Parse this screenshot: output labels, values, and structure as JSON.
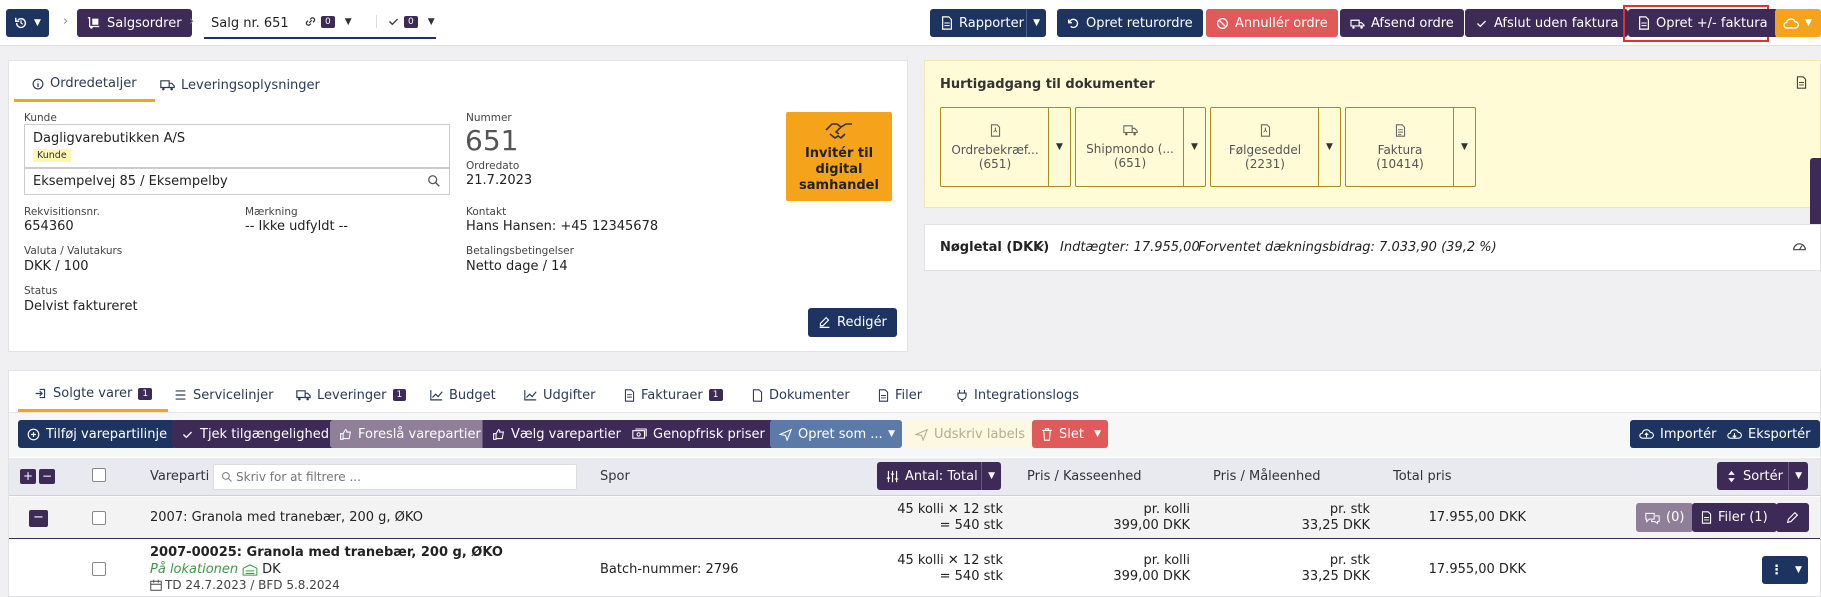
{
  "topbar": {
    "breadcrumb_app": "Salgsordrer",
    "breadcrumb_current": "Salg nr. 651",
    "link_count": "0",
    "check_count": "0",
    "actions": {
      "rapporter": "Rapporter",
      "returordre": "Opret returordre",
      "annuller": "Annullér ordre",
      "afsend": "Afsend ordre",
      "afslut": "Afslut uden faktura",
      "faktura": "Opret +/- faktura"
    }
  },
  "details": {
    "tabs": [
      "Ordredetaljer",
      "Leveringsoplysninger"
    ],
    "kunde_label": "Kunde",
    "kunde_name": "Dagligvarebutikken A/S",
    "kunde_tag": "Kunde",
    "address": "Eksempelvej 85 / Eksempelby",
    "nummer_label": "Nummer",
    "nummer": "651",
    "ordredato_label": "Ordredato",
    "ordredato": "21.7.2023",
    "rekv_label": "Rekvisitionsnr.",
    "rekv": "654360",
    "maerkning_label": "Mærkning",
    "maerkning": "-- Ikke udfyldt --",
    "kontakt_label": "Kontakt",
    "kontakt": "Hans Hansen: +45 12345678",
    "valuta_label": "Valuta / Valutakurs",
    "valuta": "DKK / 100",
    "betaling_label": "Betalingsbetingelser",
    "betaling": "Netto dage / 14",
    "status_label": "Status",
    "status": "Delvist faktureret",
    "invite_line1": "Invitér til",
    "invite_line2": "digital",
    "invite_line3": "samhandel",
    "edit_button": "Redigér"
  },
  "documents": {
    "title": "Hurtigadgang til dokumenter",
    "cards": [
      {
        "name": "Ordrebekræf...",
        "num": "(651)"
      },
      {
        "name": "Shipmondo (...",
        "num": "(651)"
      },
      {
        "name": "Følgeseddel",
        "num": "(2231)"
      },
      {
        "name": "Faktura",
        "num": "(10414)"
      }
    ]
  },
  "kpi": {
    "label": "Nøgletal (DKK)",
    "income": "Indtægter: 17.955,00",
    "margin": "Forventet dækningsbidrag: 7.033,90 (39,2 %)"
  },
  "lines_tabs": [
    {
      "label": "Solgte varer",
      "badge": "1"
    },
    {
      "label": "Servicelinjer",
      "badge": ""
    },
    {
      "label": "Leveringer",
      "badge": "1"
    },
    {
      "label": "Budget",
      "badge": ""
    },
    {
      "label": "Udgifter",
      "badge": ""
    },
    {
      "label": "Fakturaer",
      "badge": "1"
    },
    {
      "label": "Dokumenter",
      "badge": ""
    },
    {
      "label": "Filer",
      "badge": ""
    },
    {
      "label": "Integrationslogs",
      "badge": ""
    }
  ],
  "toolbar": {
    "add": "Tilføj varepartilinje",
    "check": "Tjek tilgængelighed",
    "suggest": "Foreslå varepartier",
    "choose": "Vælg varepartier",
    "refresh": "Genopfrisk priser",
    "create_as": "Opret som ...",
    "print_labels": "Udskriv labels",
    "delete": "Slet",
    "import": "Importér",
    "export": "Eksportér"
  },
  "table": {
    "col_vareparti": "Vareparti",
    "filter_placeholder": "Skriv for at filtrere ...",
    "col_spor": "Spor",
    "antal": "Antal: Total",
    "col_pris_kasse": "Pris / Kasseenhed",
    "col_pris_maale": "Pris / Måleenhed",
    "col_total": "Total pris",
    "sort": "Sortér",
    "group_row": {
      "name": "2007: Granola med tranebær, 200 g, ØKO",
      "qty1": "45 kolli",
      "qty_x": "12 stk",
      "qty2": "540 stk",
      "kasse_unit": "pr. kolli",
      "kasse_price": "399,00 DKK",
      "maale_unit": "pr. stk",
      "maale_price": "33,25 DKK",
      "total": "17.955,00 DKK",
      "comments": "(0)",
      "files": "Filer (1)"
    },
    "item_row": {
      "name": "2007-00025: Granola med tranebær, 200 g, ØKO",
      "location": "På lokationen",
      "country": "DK",
      "dates": "TD 24.7.2023 / BFD 5.8.2024",
      "spor": "Batch-nummer: 2796",
      "qty1": "45 kolli",
      "qty_x": "12 stk",
      "qty2": "540 stk",
      "kasse_unit": "pr. kolli",
      "kasse_price": "399,00 DKK",
      "maale_unit": "pr. stk",
      "maale_price": "33,25 DKK",
      "total": "17.955,00 DKK"
    }
  },
  "colors": {
    "navy": "#1d3461",
    "purple": "#3e2a56",
    "red": "#e05a5a",
    "orange": "#f5a31a",
    "doc_bg": "#fffbd6",
    "green": "#3a9a46"
  }
}
